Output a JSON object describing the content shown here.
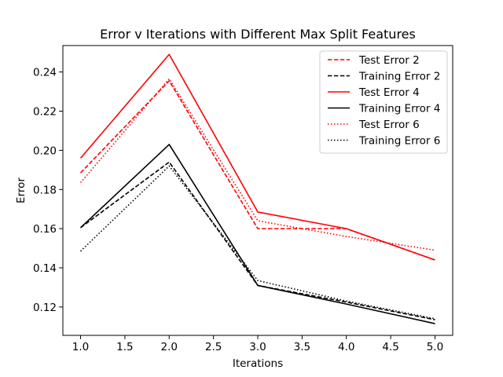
{
  "chart_data": {
    "type": "line",
    "title": "Error v Iterations with Different Max Split Features",
    "xlabel": "Iterations",
    "ylabel": "Error",
    "xlim": [
      0.8,
      5.2
    ],
    "ylim": [
      0.1055,
      0.2535
    ],
    "xticks": [
      1.0,
      1.5,
      2.0,
      2.5,
      3.0,
      3.5,
      4.0,
      4.5,
      5.0
    ],
    "xtick_labels": [
      "1.0",
      "1.5",
      "2.0",
      "2.5",
      "3.0",
      "3.5",
      "4.0",
      "4.5",
      "5.0"
    ],
    "yticks": [
      0.12,
      0.14,
      0.16,
      0.18,
      0.2,
      0.22,
      0.24
    ],
    "ytick_labels": [
      "0.12",
      "0.14",
      "0.16",
      "0.18",
      "0.20",
      "0.22",
      "0.24"
    ],
    "grid": false,
    "legend_position": "top-right",
    "x": [
      1,
      2,
      3,
      4,
      5
    ],
    "series": [
      {
        "name": "Test Error 2",
        "color": "#ff0000",
        "style": "dashed",
        "values": [
          0.1885,
          0.2355,
          0.16,
          0.16,
          0.144
        ]
      },
      {
        "name": "Training Error 2",
        "color": "#000000",
        "style": "dashed",
        "values": [
          0.1605,
          0.194,
          0.131,
          0.1225,
          0.1135
        ]
      },
      {
        "name": "Test Error 4",
        "color": "#ff0000",
        "style": "solid",
        "values": [
          0.196,
          0.249,
          0.1685,
          0.16,
          0.144
        ]
      },
      {
        "name": "Training Error 4",
        "color": "#000000",
        "style": "solid",
        "values": [
          0.1605,
          0.203,
          0.131,
          0.1215,
          0.1115
        ]
      },
      {
        "name": "Test Error 6",
        "color": "#ff0000",
        "style": "dotted",
        "values": [
          0.1835,
          0.2365,
          0.164,
          0.156,
          0.149
        ]
      },
      {
        "name": "Training Error 6",
        "color": "#000000",
        "style": "dotted",
        "values": [
          0.1485,
          0.192,
          0.1335,
          0.123,
          0.114
        ]
      }
    ]
  }
}
